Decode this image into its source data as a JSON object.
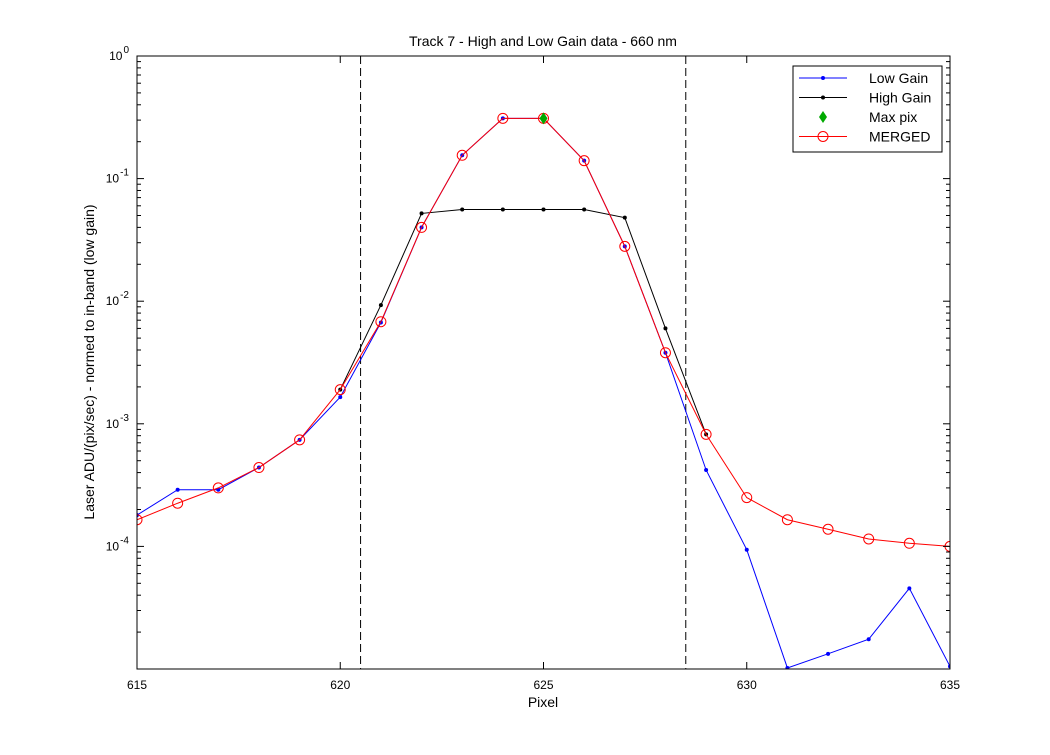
{
  "chart_data": {
    "type": "line",
    "title": "Track 7 - High and Low Gain data - 660 nm",
    "xlabel": "Pixel",
    "ylabel": "Laser ADU/(pix/sec) - normed to in-band (low gain)",
    "xlim": [
      615,
      635
    ],
    "ylim": [
      1e-05,
      1
    ],
    "yscale": "log",
    "grid": false,
    "legend_position": "top-right",
    "x_ticks": [
      615,
      620,
      625,
      630,
      635
    ],
    "y_ticks": [
      {
        "value": 1,
        "base": "10",
        "exp": "0"
      },
      {
        "value": 0.1,
        "base": "10",
        "exp": "-1"
      },
      {
        "value": 0.01,
        "base": "10",
        "exp": "-2"
      },
      {
        "value": 0.001,
        "base": "10",
        "exp": "-3"
      },
      {
        "value": 0.0001,
        "base": "10",
        "exp": "-4"
      }
    ],
    "vertical_lines": [
      620.5,
      628.5
    ],
    "series": [
      {
        "name": "Low Gain",
        "color": "#0000ff",
        "marker": "dot",
        "x": [
          615,
          616,
          617,
          618,
          619,
          620,
          621,
          622,
          623,
          624,
          625,
          626,
          627,
          628,
          629,
          630,
          631,
          632,
          633,
          634,
          635
        ],
        "y": [
          0.00018,
          0.00029,
          0.00029,
          0.00044,
          0.00074,
          0.00165,
          0.0067,
          0.04,
          0.155,
          0.31,
          0.31,
          0.14,
          0.028,
          0.0038,
          0.00042,
          9.4e-05,
          1.02e-05,
          1.33e-05,
          1.75e-05,
          4.55e-05,
          1.05e-05
        ]
      },
      {
        "name": "High Gain",
        "color": "#000000",
        "marker": "dot",
        "x": [
          620,
          621,
          622,
          623,
          624,
          625,
          626,
          627,
          628,
          629
        ],
        "y": [
          0.0019,
          0.0093,
          0.052,
          0.056,
          0.056,
          0.056,
          0.056,
          0.048,
          0.006,
          0.00082
        ]
      },
      {
        "name": "Max pix",
        "color": "#00aa00",
        "marker": "diamond",
        "x": [
          625
        ],
        "y": [
          0.31
        ]
      },
      {
        "name": "MERGED",
        "color": "#ff0000",
        "marker": "circle",
        "x": [
          615,
          616,
          617,
          618,
          619,
          620,
          621,
          622,
          623,
          624,
          625,
          626,
          627,
          628,
          629,
          630,
          631,
          632,
          633,
          634,
          635
        ],
        "y": [
          0.000165,
          0.000225,
          0.0003,
          0.00044,
          0.00074,
          0.0019,
          0.0068,
          0.04,
          0.155,
          0.31,
          0.31,
          0.14,
          0.028,
          0.0038,
          0.00082,
          0.00025,
          0.000165,
          0.000138,
          0.000115,
          0.000106,
          0.0001
        ]
      }
    ]
  }
}
